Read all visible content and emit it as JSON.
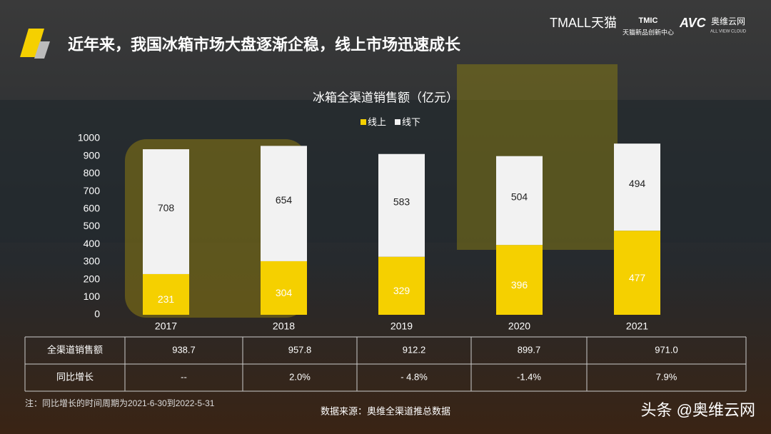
{
  "header": {
    "title": "近年来，我国冰箱市场大盘逐渐企稳，线上市场迅速成长"
  },
  "logos": {
    "tmall": "TMALL天猫",
    "tmic": "TMIC",
    "tmic_sub": "天猫新品创新中心",
    "avc": "AVC",
    "avc_name": "奥维云网",
    "avc_sub": "ALL VIEW CLOUD"
  },
  "chart_data": {
    "type": "stacked_bar",
    "title": "冰箱全渠道销售额（亿元）",
    "categories": [
      "2017",
      "2018",
      "2019",
      "2020",
      "2021"
    ],
    "series": [
      {
        "name": "线上",
        "color": "#f5d000",
        "values": [
          231,
          304,
          329,
          396,
          477
        ]
      },
      {
        "name": "线下",
        "color": "#f2f2f2",
        "values": [
          708,
          654,
          583,
          504,
          494
        ]
      }
    ],
    "ylim": [
      0,
      1000
    ],
    "yticks": [
      0,
      100,
      200,
      300,
      400,
      500,
      600,
      700,
      800,
      900,
      1000
    ],
    "legend": "top"
  },
  "table": {
    "rows": [
      [
        "全渠道销售额",
        "938.7",
        "957.8",
        "912.2",
        "899.7",
        "971.0"
      ],
      [
        "同比增长",
        "--",
        "2.0%",
        "- 4.8%",
        "-1.4%",
        "7.9%"
      ]
    ]
  },
  "footnote": "注：同比增长的时间周期为2021-6-30到2022-5-31",
  "source": "数据来源：奥维全渠道推总数据",
  "watermark": "头条 @奥维云网"
}
